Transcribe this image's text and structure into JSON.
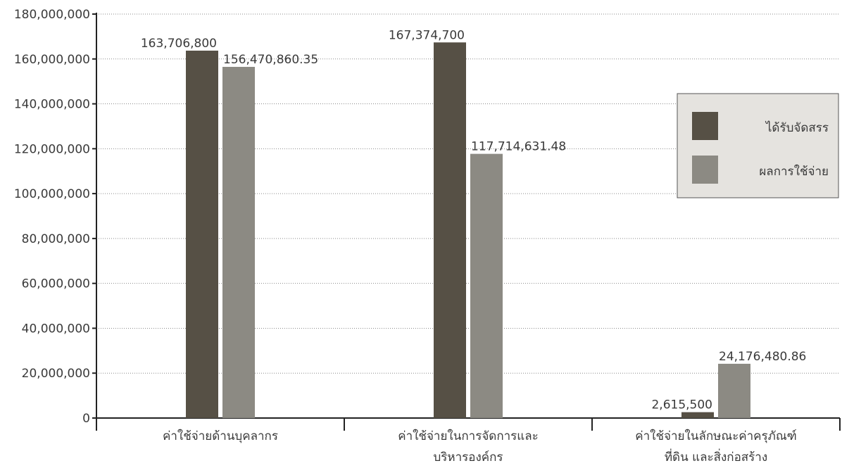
{
  "chart_data": {
    "type": "bar",
    "categories": [
      [
        "ค่าใช้จ่ายด้านบุคลากร"
      ],
      [
        "ค่าใช้จ่ายในการจัดการและ",
        "บริหารองค์กร"
      ],
      [
        "ค่าใช้จ่ายในลักษณะค่าครุภัณฑ์",
        "ที่ดิน และสิ่งก่อสร้าง"
      ]
    ],
    "series": [
      {
        "name": "ได้รับจัดสรร",
        "color": "#565045",
        "values": [
          163706800,
          167374700,
          2615500
        ],
        "labels": [
          "163,706,800",
          "167,374,700",
          "2,615,500"
        ]
      },
      {
        "name": "ผลการใช้จ่าย",
        "color": "#8c8a83",
        "values": [
          156470860.35,
          117714631.48,
          24176480.86
        ],
        "labels": [
          "156,470,860.35",
          "117,714,631.48",
          "24,176,480.86"
        ]
      }
    ],
    "ylim": [
      0,
      180000000
    ],
    "yticks": [
      0,
      20000000,
      40000000,
      60000000,
      80000000,
      100000000,
      120000000,
      140000000,
      160000000,
      180000000
    ],
    "ytick_labels": [
      "0",
      "20,000,000",
      "40,000,000",
      "60,000,000",
      "80,000,000",
      "100,000,000",
      "120,000,000",
      "140,000,000",
      "160,000,000",
      "180,000,000"
    ],
    "grid": true,
    "legend_position": "right",
    "title": "",
    "xlabel": "",
    "ylabel": ""
  }
}
